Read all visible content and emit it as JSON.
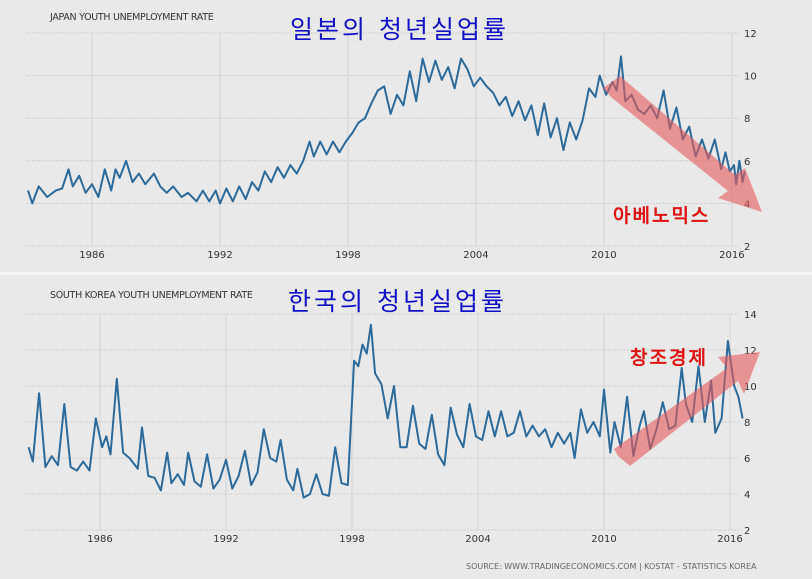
{
  "chart_data": [
    {
      "type": "line",
      "title": "JAPAN YOUTH UNEMPLOYMENT RATE",
      "overlay_title": "일본의 청년실업률",
      "annotation": "아베노믹스",
      "annotation_trend": "down",
      "x_ticks": [
        "1986",
        "1992",
        "1998",
        "2004",
        "2010",
        "2016"
      ],
      "y_ticks": [
        2,
        4,
        6,
        8,
        10,
        12
      ],
      "ylim": [
        2,
        12
      ],
      "line_color": "#2b6a9a",
      "series": [
        {
          "name": "Japan",
          "x": [
            1983.0,
            1983.2,
            1983.5,
            1983.9,
            1984.3,
            1984.6,
            1984.9,
            1985.1,
            1985.4,
            1985.7,
            1986.0,
            1986.3,
            1986.6,
            1986.9,
            1987.1,
            1987.3,
            1987.6,
            1987.9,
            1988.2,
            1988.5,
            1988.9,
            1989.2,
            1989.5,
            1989.8,
            1990.2,
            1990.5,
            1990.9,
            1991.2,
            1991.5,
            1991.8,
            1992.0,
            1992.3,
            1992.6,
            1992.9,
            1993.2,
            1993.5,
            1993.8,
            1994.1,
            1994.4,
            1994.7,
            1995.0,
            1995.3,
            1995.6,
            1995.9,
            1996.2,
            1996.4,
            1996.7,
            1997.0,
            1997.3,
            1997.6,
            1997.9,
            1998.2,
            1998.5,
            1998.8,
            1999.1,
            1999.4,
            1999.7,
            2000.0,
            2000.3,
            2000.6,
            2000.9,
            2001.2,
            2001.5,
            2001.8,
            2002.1,
            2002.4,
            2002.7,
            2003.0,
            2003.3,
            2003.6,
            2003.9,
            2004.2,
            2004.5,
            2004.8,
            2005.1,
            2005.4,
            2005.7,
            2006.0,
            2006.3,
            2006.6,
            2006.9,
            2007.2,
            2007.5,
            2007.8,
            2008.1,
            2008.4,
            2008.7,
            2009.0,
            2009.3,
            2009.6,
            2009.8,
            2010.1,
            2010.4,
            2010.6,
            2010.8,
            2011.0,
            2011.3,
            2011.6,
            2011.9,
            2012.2,
            2012.5,
            2012.8,
            2013.1,
            2013.4,
            2013.7,
            2014.0,
            2014.3,
            2014.6,
            2014.9,
            2015.2,
            2015.5,
            2015.7,
            2015.9,
            2016.1,
            2016.2,
            2016.35,
            2016.5,
            2016.6
          ],
          "values": [
            4.6,
            4.0,
            4.8,
            4.3,
            4.6,
            4.7,
            5.6,
            4.8,
            5.3,
            4.5,
            4.9,
            4.3,
            5.6,
            4.6,
            5.6,
            5.2,
            6.0,
            5.0,
            5.4,
            4.9,
            5.4,
            4.8,
            4.5,
            4.8,
            4.3,
            4.5,
            4.1,
            4.6,
            4.1,
            4.6,
            4.0,
            4.7,
            4.1,
            4.8,
            4.2,
            5.0,
            4.6,
            5.5,
            5.0,
            5.7,
            5.2,
            5.8,
            5.4,
            6.0,
            6.9,
            6.2,
            6.9,
            6.3,
            6.9,
            6.4,
            6.9,
            7.3,
            7.8,
            8.0,
            8.7,
            9.3,
            9.5,
            8.2,
            9.1,
            8.6,
            10.2,
            8.8,
            10.8,
            9.7,
            10.7,
            9.8,
            10.4,
            9.4,
            10.8,
            10.3,
            9.5,
            9.9,
            9.5,
            9.2,
            8.6,
            9.0,
            8.1,
            8.8,
            7.9,
            8.6,
            7.2,
            8.7,
            7.1,
            8.0,
            6.5,
            7.8,
            7.0,
            7.9,
            9.4,
            9.0,
            10.0,
            9.1,
            9.7,
            9.3,
            10.9,
            8.8,
            9.1,
            8.4,
            8.2,
            8.6,
            8.0,
            9.3,
            7.5,
            8.5,
            7.0,
            7.6,
            6.2,
            7.0,
            6.1,
            7.0,
            5.6,
            6.4,
            5.5,
            5.8,
            4.9,
            6.0,
            5.0,
            5.5
          ]
        }
      ]
    },
    {
      "type": "line",
      "title": "SOUTH KOREA YOUTH UNEMPLOYMENT RATE",
      "overlay_title": "한국의 청년실업률",
      "annotation": "창조경제",
      "annotation_trend": "up",
      "x_ticks": [
        "1986",
        "1992",
        "1998",
        "2004",
        "2010",
        "2016"
      ],
      "y_ticks": [
        2,
        4,
        6,
        8,
        10,
        12,
        14
      ],
      "ylim": [
        2,
        14
      ],
      "line_color": "#2b6a9a",
      "source": "SOURCE: WWW.TRADINGECONOMICS.COM | KOSTAT - STATISTICS KOREA",
      "series": [
        {
          "name": "South Korea",
          "x": [
            1982.6,
            1982.8,
            1983.1,
            1983.4,
            1983.7,
            1984.0,
            1984.3,
            1984.6,
            1984.9,
            1985.2,
            1985.5,
            1985.8,
            1986.1,
            1986.3,
            1986.5,
            1986.8,
            1987.1,
            1987.4,
            1987.8,
            1988.0,
            1988.3,
            1988.6,
            1988.9,
            1989.2,
            1989.4,
            1989.7,
            1990.0,
            1990.2,
            1990.5,
            1990.8,
            1991.1,
            1991.4,
            1991.7,
            1992.0,
            1992.3,
            1992.6,
            1992.9,
            1993.2,
            1993.5,
            1993.8,
            1994.1,
            1994.4,
            1994.6,
            1994.9,
            1995.2,
            1995.4,
            1995.7,
            1996.0,
            1996.3,
            1996.6,
            1996.9,
            1997.2,
            1997.5,
            1997.8,
            1998.1,
            1998.3,
            1998.5,
            1998.7,
            1998.9,
            1999.1,
            1999.4,
            1999.7,
            2000.0,
            2000.3,
            2000.6,
            2000.9,
            2001.2,
            2001.5,
            2001.8,
            2002.1,
            2002.4,
            2002.7,
            2003.0,
            2003.3,
            2003.6,
            2003.9,
            2004.2,
            2004.5,
            2004.8,
            2005.1,
            2005.4,
            2005.7,
            2006.0,
            2006.3,
            2006.6,
            2006.9,
            2007.2,
            2007.5,
            2007.8,
            2008.1,
            2008.4,
            2008.6,
            2008.9,
            2009.2,
            2009.5,
            2009.8,
            2010.0,
            2010.3,
            2010.5,
            2010.8,
            2011.1,
            2011.4,
            2011.7,
            2011.9,
            2012.2,
            2012.5,
            2012.8,
            2013.1,
            2013.4,
            2013.7,
            2013.9,
            2014.2,
            2014.5,
            2014.8,
            2015.1,
            2015.3,
            2015.6,
            2015.9,
            2016.2,
            2016.4,
            2016.6
          ],
          "values": [
            6.6,
            5.8,
            9.6,
            5.5,
            6.1,
            5.6,
            9.0,
            5.5,
            5.3,
            5.8,
            5.3,
            8.2,
            6.6,
            7.2,
            6.2,
            10.4,
            6.3,
            6.0,
            5.4,
            7.7,
            5.0,
            4.9,
            4.2,
            6.3,
            4.6,
            5.1,
            4.5,
            6.3,
            4.7,
            4.4,
            6.2,
            4.3,
            4.8,
            5.9,
            4.3,
            5.0,
            6.4,
            4.5,
            5.2,
            7.6,
            6.0,
            5.8,
            7.0,
            4.8,
            4.2,
            5.4,
            3.8,
            4.0,
            5.1,
            4.0,
            3.9,
            6.6,
            4.6,
            4.5,
            11.4,
            11.1,
            12.3,
            11.8,
            13.4,
            10.7,
            10.1,
            8.2,
            10.0,
            6.6,
            6.6,
            8.9,
            6.8,
            6.5,
            8.4,
            6.2,
            5.6,
            8.8,
            7.3,
            6.6,
            9.0,
            7.2,
            7.0,
            8.6,
            7.2,
            8.6,
            7.2,
            7.4,
            8.6,
            7.2,
            7.8,
            7.2,
            7.6,
            6.6,
            7.4,
            6.8,
            7.4,
            6.0,
            8.7,
            7.4,
            8.0,
            7.2,
            9.8,
            6.3,
            8.0,
            6.6,
            9.4,
            6.1,
            7.8,
            8.6,
            6.5,
            7.6,
            9.1,
            7.6,
            7.8,
            11.0,
            9.0,
            8.0,
            11.1,
            8.0,
            10.3,
            7.4,
            8.2,
            12.5,
            10.0,
            9.4,
            8.2
          ]
        }
      ]
    }
  ]
}
